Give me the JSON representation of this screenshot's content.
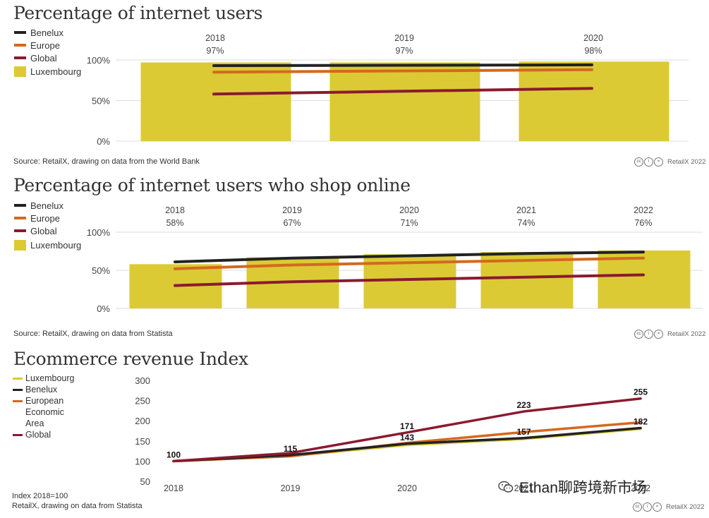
{
  "watermark": "Ethan聊跨境新市场",
  "credit_text": "RetailX 2022",
  "colors": {
    "benelux": "#222222",
    "europe": "#d4691e",
    "global": "#8b1a2f",
    "luxembourg": "#dcca34",
    "grid": "#dddddd"
  },
  "charts": {
    "users": {
      "title": "Percentage of internet users",
      "legend": [
        "Benelux",
        "Europe",
        "Global",
        "Luxembourg"
      ],
      "source": "Source: RetailX, drawing on data from the World Bank"
    },
    "shop": {
      "title": "Percentage of internet users who shop online",
      "legend": [
        "Benelux",
        "Europe",
        "Global",
        "Luxembourg"
      ],
      "source": "Source: RetailX, drawing on data from Statista"
    },
    "revenue": {
      "title": "Ecommerce revenue Index",
      "legend": [
        "Luxembourg",
        "Benelux",
        "European Economic Area",
        "Global"
      ],
      "note": "Index 2018=100",
      "source": "RetailX, drawing on data from Statista"
    }
  },
  "chart_data": [
    {
      "type": "bar",
      "title": "Percentage of internet users",
      "categories": [
        "2018",
        "2019",
        "2020"
      ],
      "bar_labels": [
        "97%",
        "97%",
        "98%"
      ],
      "ylim": [
        0,
        100
      ],
      "yticks": [
        0,
        50,
        100
      ],
      "ytick_labels": [
        "0%",
        "50%",
        "100%"
      ],
      "series": [
        {
          "name": "Luxembourg",
          "kind": "bar",
          "values": [
            97,
            97,
            98
          ]
        },
        {
          "name": "Benelux",
          "kind": "line",
          "values": [
            93,
            93.5,
            94
          ]
        },
        {
          "name": "Europe",
          "kind": "line",
          "values": [
            85,
            86.5,
            88
          ]
        },
        {
          "name": "Global",
          "kind": "line",
          "values": [
            58,
            61.5,
            65
          ]
        }
      ]
    },
    {
      "type": "bar",
      "title": "Percentage of internet users who shop online",
      "categories": [
        "2018",
        "2019",
        "2020",
        "2021",
        "2022"
      ],
      "bar_labels": [
        "58%",
        "67%",
        "71%",
        "74%",
        "76%"
      ],
      "ylim": [
        0,
        100
      ],
      "yticks": [
        0,
        50,
        100
      ],
      "ytick_labels": [
        "0%",
        "50%",
        "100%"
      ],
      "series": [
        {
          "name": "Luxembourg",
          "kind": "bar",
          "values": [
            58,
            67,
            71,
            74,
            76
          ]
        },
        {
          "name": "Benelux",
          "kind": "line",
          "values": [
            61,
            66,
            69,
            72,
            74
          ]
        },
        {
          "name": "Europe",
          "kind": "line",
          "values": [
            52,
            57,
            60,
            63,
            66
          ]
        },
        {
          "name": "Global",
          "kind": "line",
          "values": [
            30,
            35,
            38,
            41,
            44
          ]
        }
      ]
    },
    {
      "type": "line",
      "title": "Ecommerce revenue Index",
      "categories": [
        "2018",
        "2019",
        "2020",
        "2021",
        "2022"
      ],
      "ylim": [
        50,
        300
      ],
      "yticks": [
        50,
        100,
        150,
        200,
        250,
        300
      ],
      "series": [
        {
          "name": "Luxembourg",
          "values": [
            100,
            113,
            140,
            155,
            180
          ]
        },
        {
          "name": "Benelux",
          "values": [
            100,
            115,
            143,
            157,
            182
          ]
        },
        {
          "name": "European Economic Area",
          "values": [
            100,
            112,
            145,
            172,
            196
          ]
        },
        {
          "name": "Global",
          "values": [
            100,
            120,
            171,
            223,
            255
          ]
        }
      ],
      "point_labels": [
        {
          "category": "2018",
          "value": 100,
          "text": "100"
        },
        {
          "category": "2019",
          "value": 115,
          "text": "115"
        },
        {
          "category": "2020",
          "value": 171,
          "text": "171"
        },
        {
          "category": "2020",
          "value": 143,
          "text": "143"
        },
        {
          "category": "2021",
          "value": 223,
          "text": "223"
        },
        {
          "category": "2021",
          "value": 157,
          "text": "157"
        },
        {
          "category": "2022",
          "value": 255,
          "text": "255"
        },
        {
          "category": "2022",
          "value": 182,
          "text": "182"
        }
      ]
    }
  ]
}
